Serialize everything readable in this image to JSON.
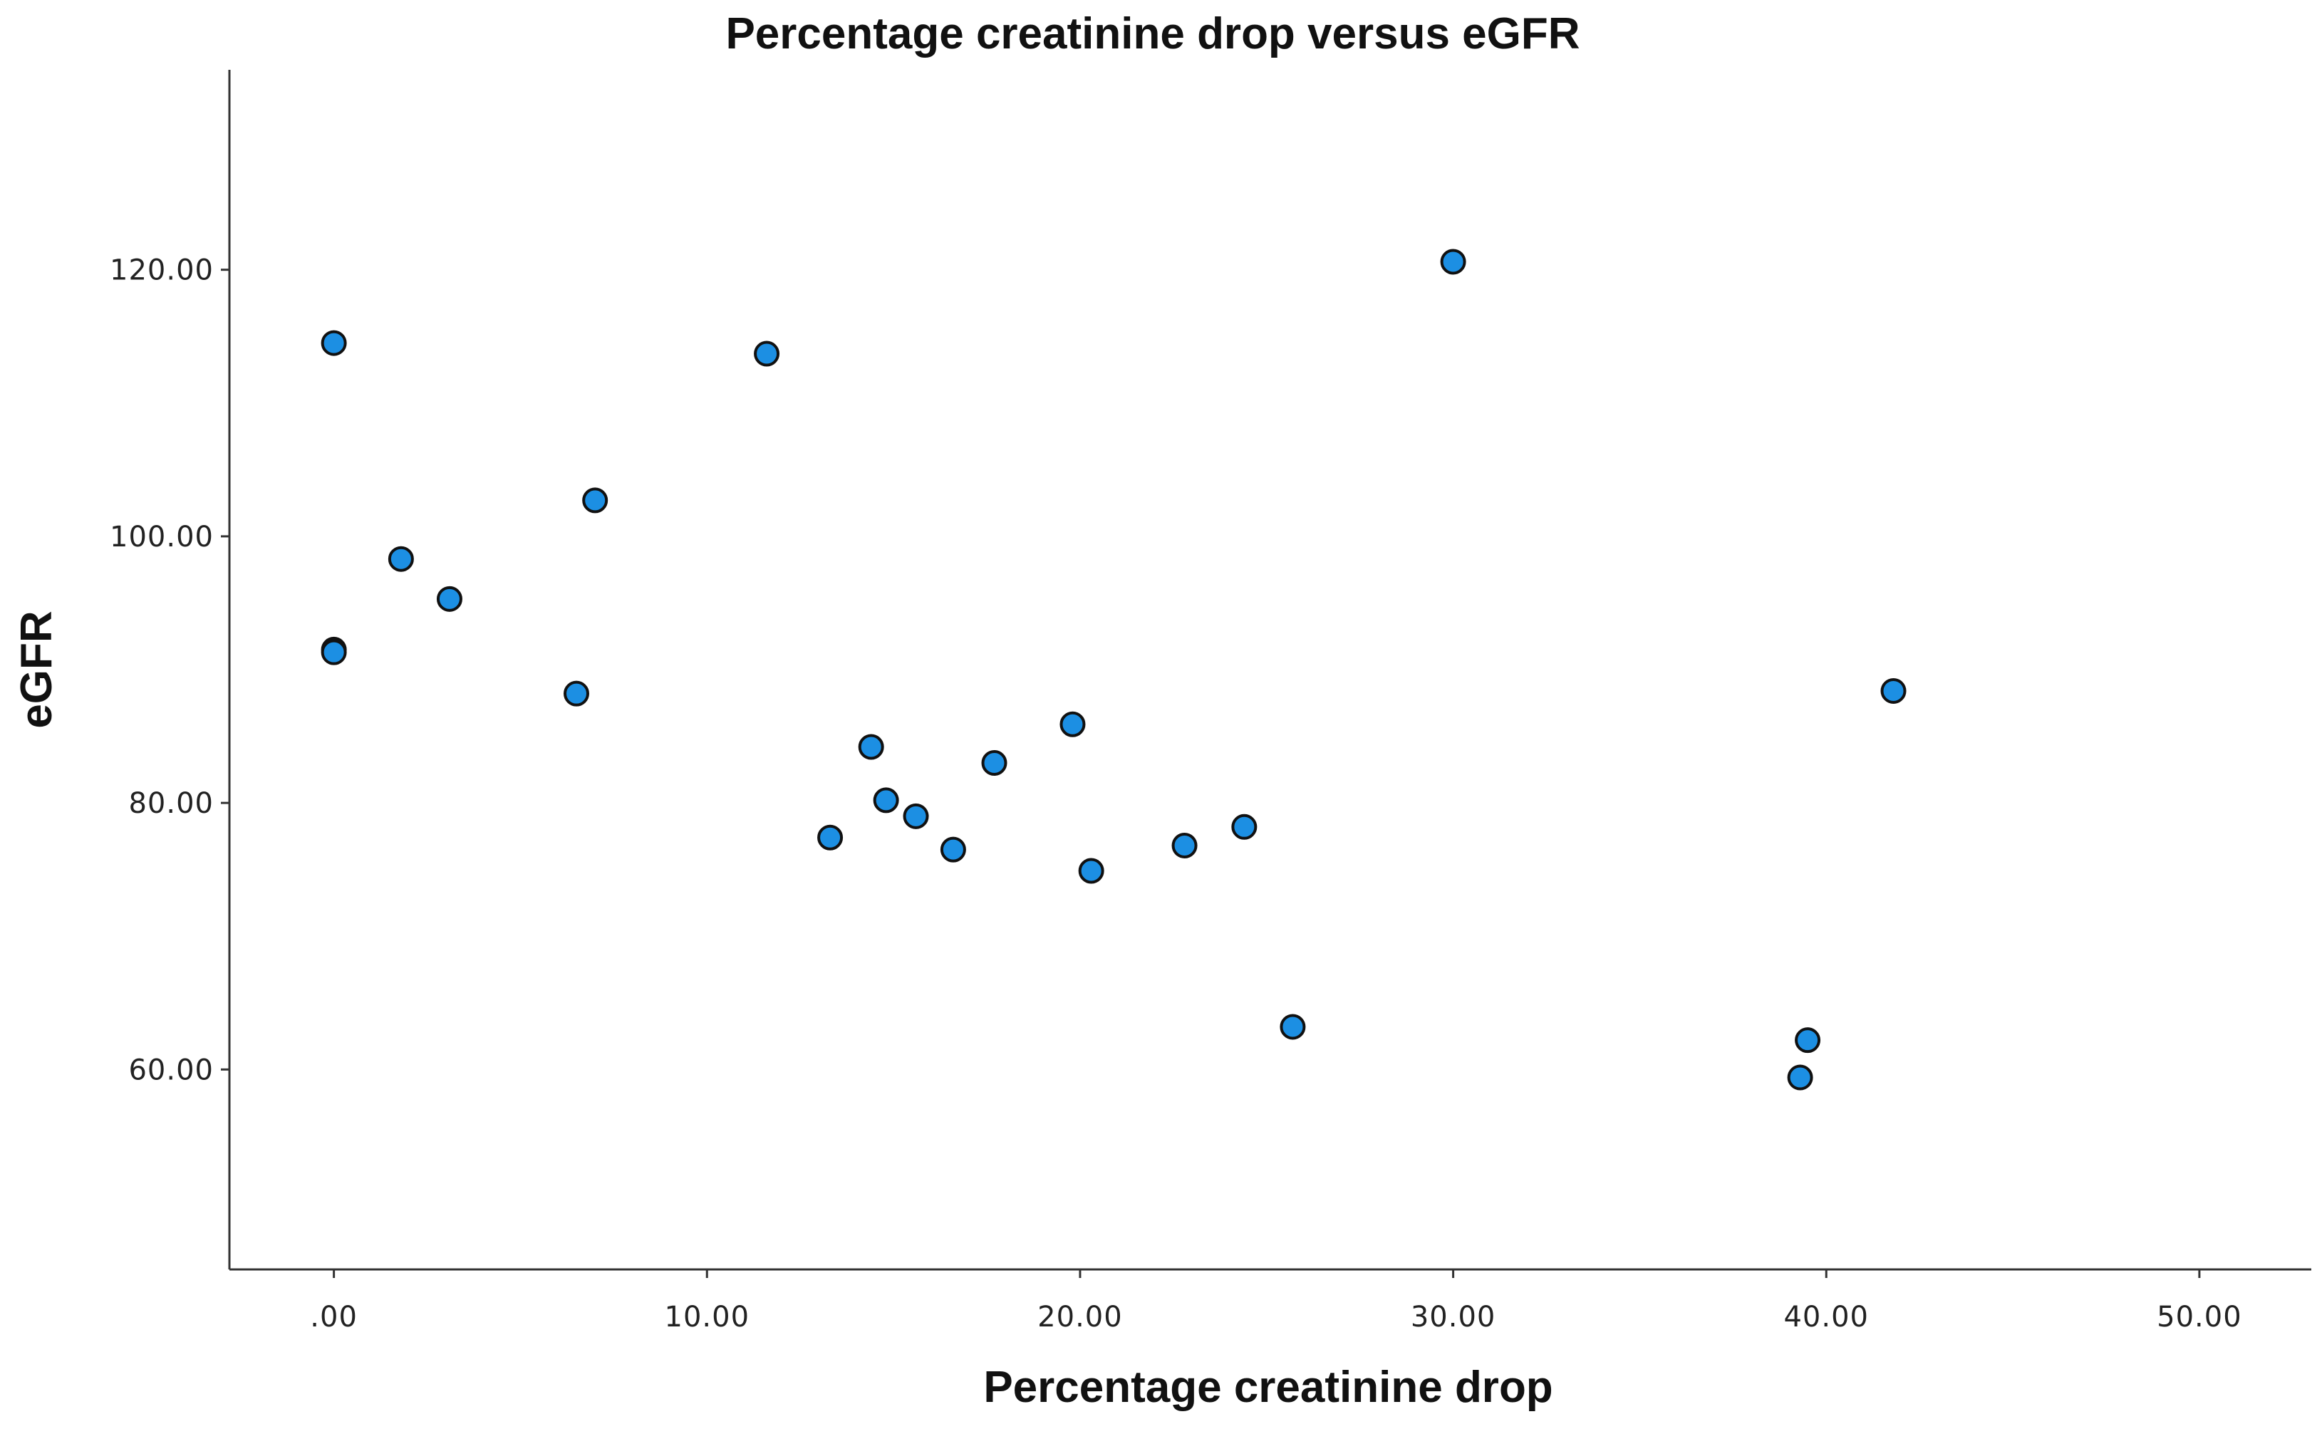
{
  "chart_data": {
    "type": "scatter",
    "title": "Percentage creatinine drop versus eGFR",
    "xlabel": "Percentage creatinine drop",
    "ylabel": "eGFR",
    "xlim": [
      -2.8,
      53
    ],
    "ylim": [
      45,
      135
    ],
    "xticks": [
      0,
      10,
      20,
      30,
      40,
      50
    ],
    "xtick_labels": [
      ".00",
      "10.00",
      "20.00",
      "30.00",
      "40.00",
      "50.00"
    ],
    "yticks": [
      60,
      80,
      100,
      120
    ],
    "ytick_labels": [
      "60.00",
      "80.00",
      "100.00",
      "120.00"
    ],
    "grid": false,
    "marker_color": "#1c8fe3",
    "series": [
      {
        "name": "eGFR",
        "points": [
          {
            "x": 0.0,
            "y": 114.5
          },
          {
            "x": 0.0,
            "y": 91.5
          },
          {
            "x": 0.0,
            "y": 91.3
          },
          {
            "x": 1.8,
            "y": 98.3
          },
          {
            "x": 3.1,
            "y": 95.3
          },
          {
            "x": 6.5,
            "y": 88.2
          },
          {
            "x": 7.0,
            "y": 102.7
          },
          {
            "x": 11.6,
            "y": 113.7
          },
          {
            "x": 13.3,
            "y": 77.4
          },
          {
            "x": 14.4,
            "y": 84.2
          },
          {
            "x": 14.8,
            "y": 80.2
          },
          {
            "x": 15.6,
            "y": 79.0
          },
          {
            "x": 16.6,
            "y": 76.5
          },
          {
            "x": 17.7,
            "y": 83.0
          },
          {
            "x": 19.8,
            "y": 85.9
          },
          {
            "x": 20.3,
            "y": 74.9
          },
          {
            "x": 22.8,
            "y": 76.8
          },
          {
            "x": 24.4,
            "y": 78.2
          },
          {
            "x": 25.7,
            "y": 63.2
          },
          {
            "x": 30.0,
            "y": 120.6
          },
          {
            "x": 39.3,
            "y": 59.4
          },
          {
            "x": 39.5,
            "y": 62.2
          },
          {
            "x": 41.8,
            "y": 88.4
          }
        ]
      }
    ]
  }
}
